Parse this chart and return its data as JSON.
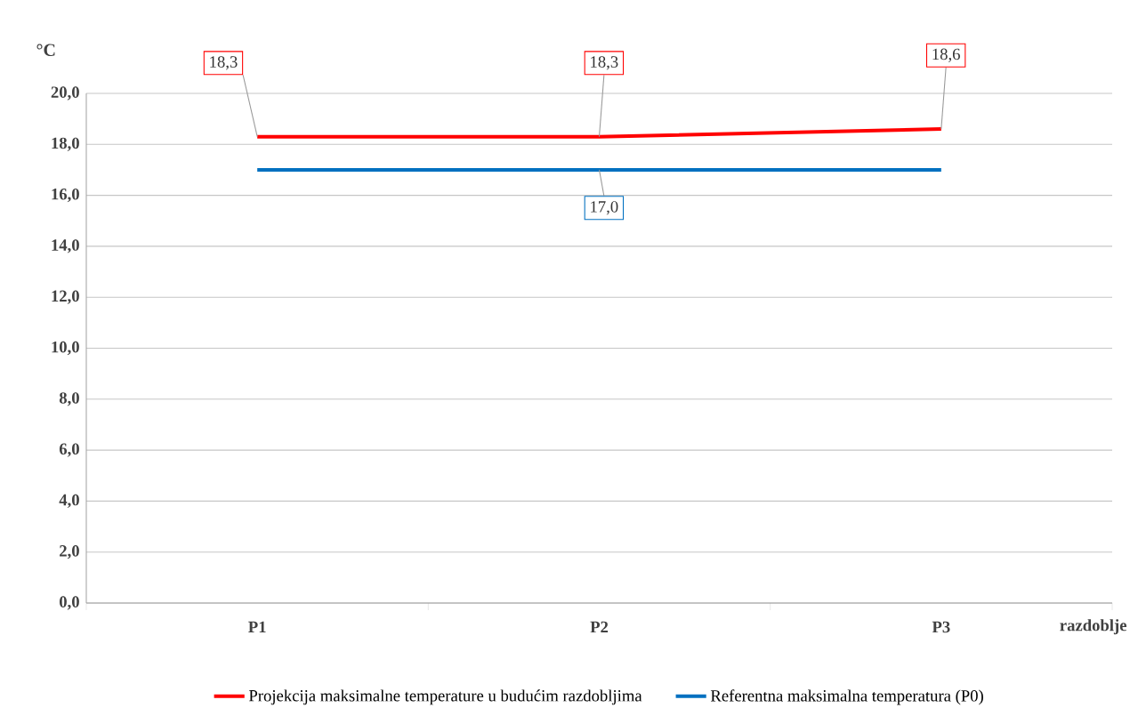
{
  "chart_data": {
    "type": "line",
    "categories": [
      "P1",
      "P2",
      "P3"
    ],
    "series": [
      {
        "name": "Projekcija maksimalne temperature u budućim razdobljima",
        "color": "#ff0000",
        "values": [
          18.3,
          18.3,
          18.6
        ],
        "value_labels": [
          "18,3",
          "18,3",
          "18,6"
        ]
      },
      {
        "name": "Referentna maksimalna temperatura (P0)",
        "color": "#0070c0",
        "values": [
          17.0,
          17.0,
          17.0
        ],
        "value_labels": [
          null,
          "17,0",
          null
        ]
      }
    ],
    "xlabel": "razdoblje",
    "ylabel": "°C",
    "ylim": [
      0,
      20
    ],
    "yticks": [
      {
        "value": 0,
        "label": "0,0"
      },
      {
        "value": 2,
        "label": "2,0"
      },
      {
        "value": 4,
        "label": "4,0"
      },
      {
        "value": 6,
        "label": "6,0"
      },
      {
        "value": 8,
        "label": "8,0"
      },
      {
        "value": 10,
        "label": "10,0"
      },
      {
        "value": 12,
        "label": "12,0"
      },
      {
        "value": 14,
        "label": "14,0"
      },
      {
        "value": 16,
        "label": "16,0"
      },
      {
        "value": 18,
        "label": "18,0"
      },
      {
        "value": 20,
        "label": "20,0"
      }
    ],
    "grid": "y",
    "legend": "bottom",
    "line_style": "solid"
  }
}
